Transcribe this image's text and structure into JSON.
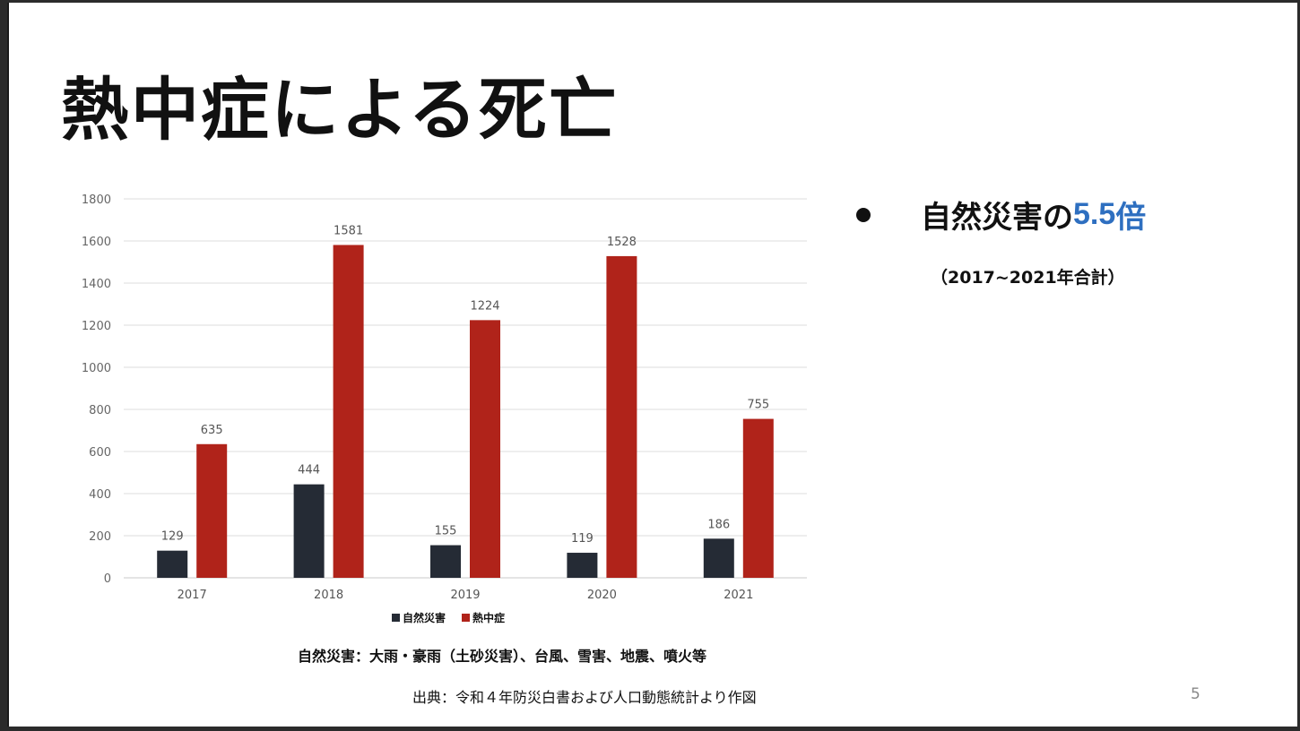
{
  "slide": {
    "title": "熱中症による死亡",
    "bullet_prefix": "自然災害の",
    "bullet_value": "5.5",
    "bullet_suffix": "倍",
    "sub_note": "（2017~2021年合計）",
    "note": "自然災害：大雨・豪雨（土砂災害）、台風、雪害、地震、噴火等",
    "source": "出典：令和４年防災白書および人口動態統計より作図",
    "page_number": "5",
    "accent_color": "#2e6fc0"
  },
  "chart_data": {
    "type": "bar",
    "categories": [
      "2017",
      "2018",
      "2019",
      "2020",
      "2021"
    ],
    "series": [
      {
        "name": "自然災害",
        "values": [
          129,
          444,
          155,
          119,
          186
        ],
        "color": "#252b35"
      },
      {
        "name": "熱中症",
        "values": [
          635,
          1581,
          1224,
          1528,
          755
        ],
        "color": "#b0231a"
      }
    ],
    "ylim": [
      0,
      1800
    ],
    "yticks": [
      0,
      200,
      400,
      600,
      800,
      1000,
      1200,
      1400,
      1600,
      1800
    ],
    "grid": true,
    "legend": "bottom-center",
    "data_labels": true
  }
}
